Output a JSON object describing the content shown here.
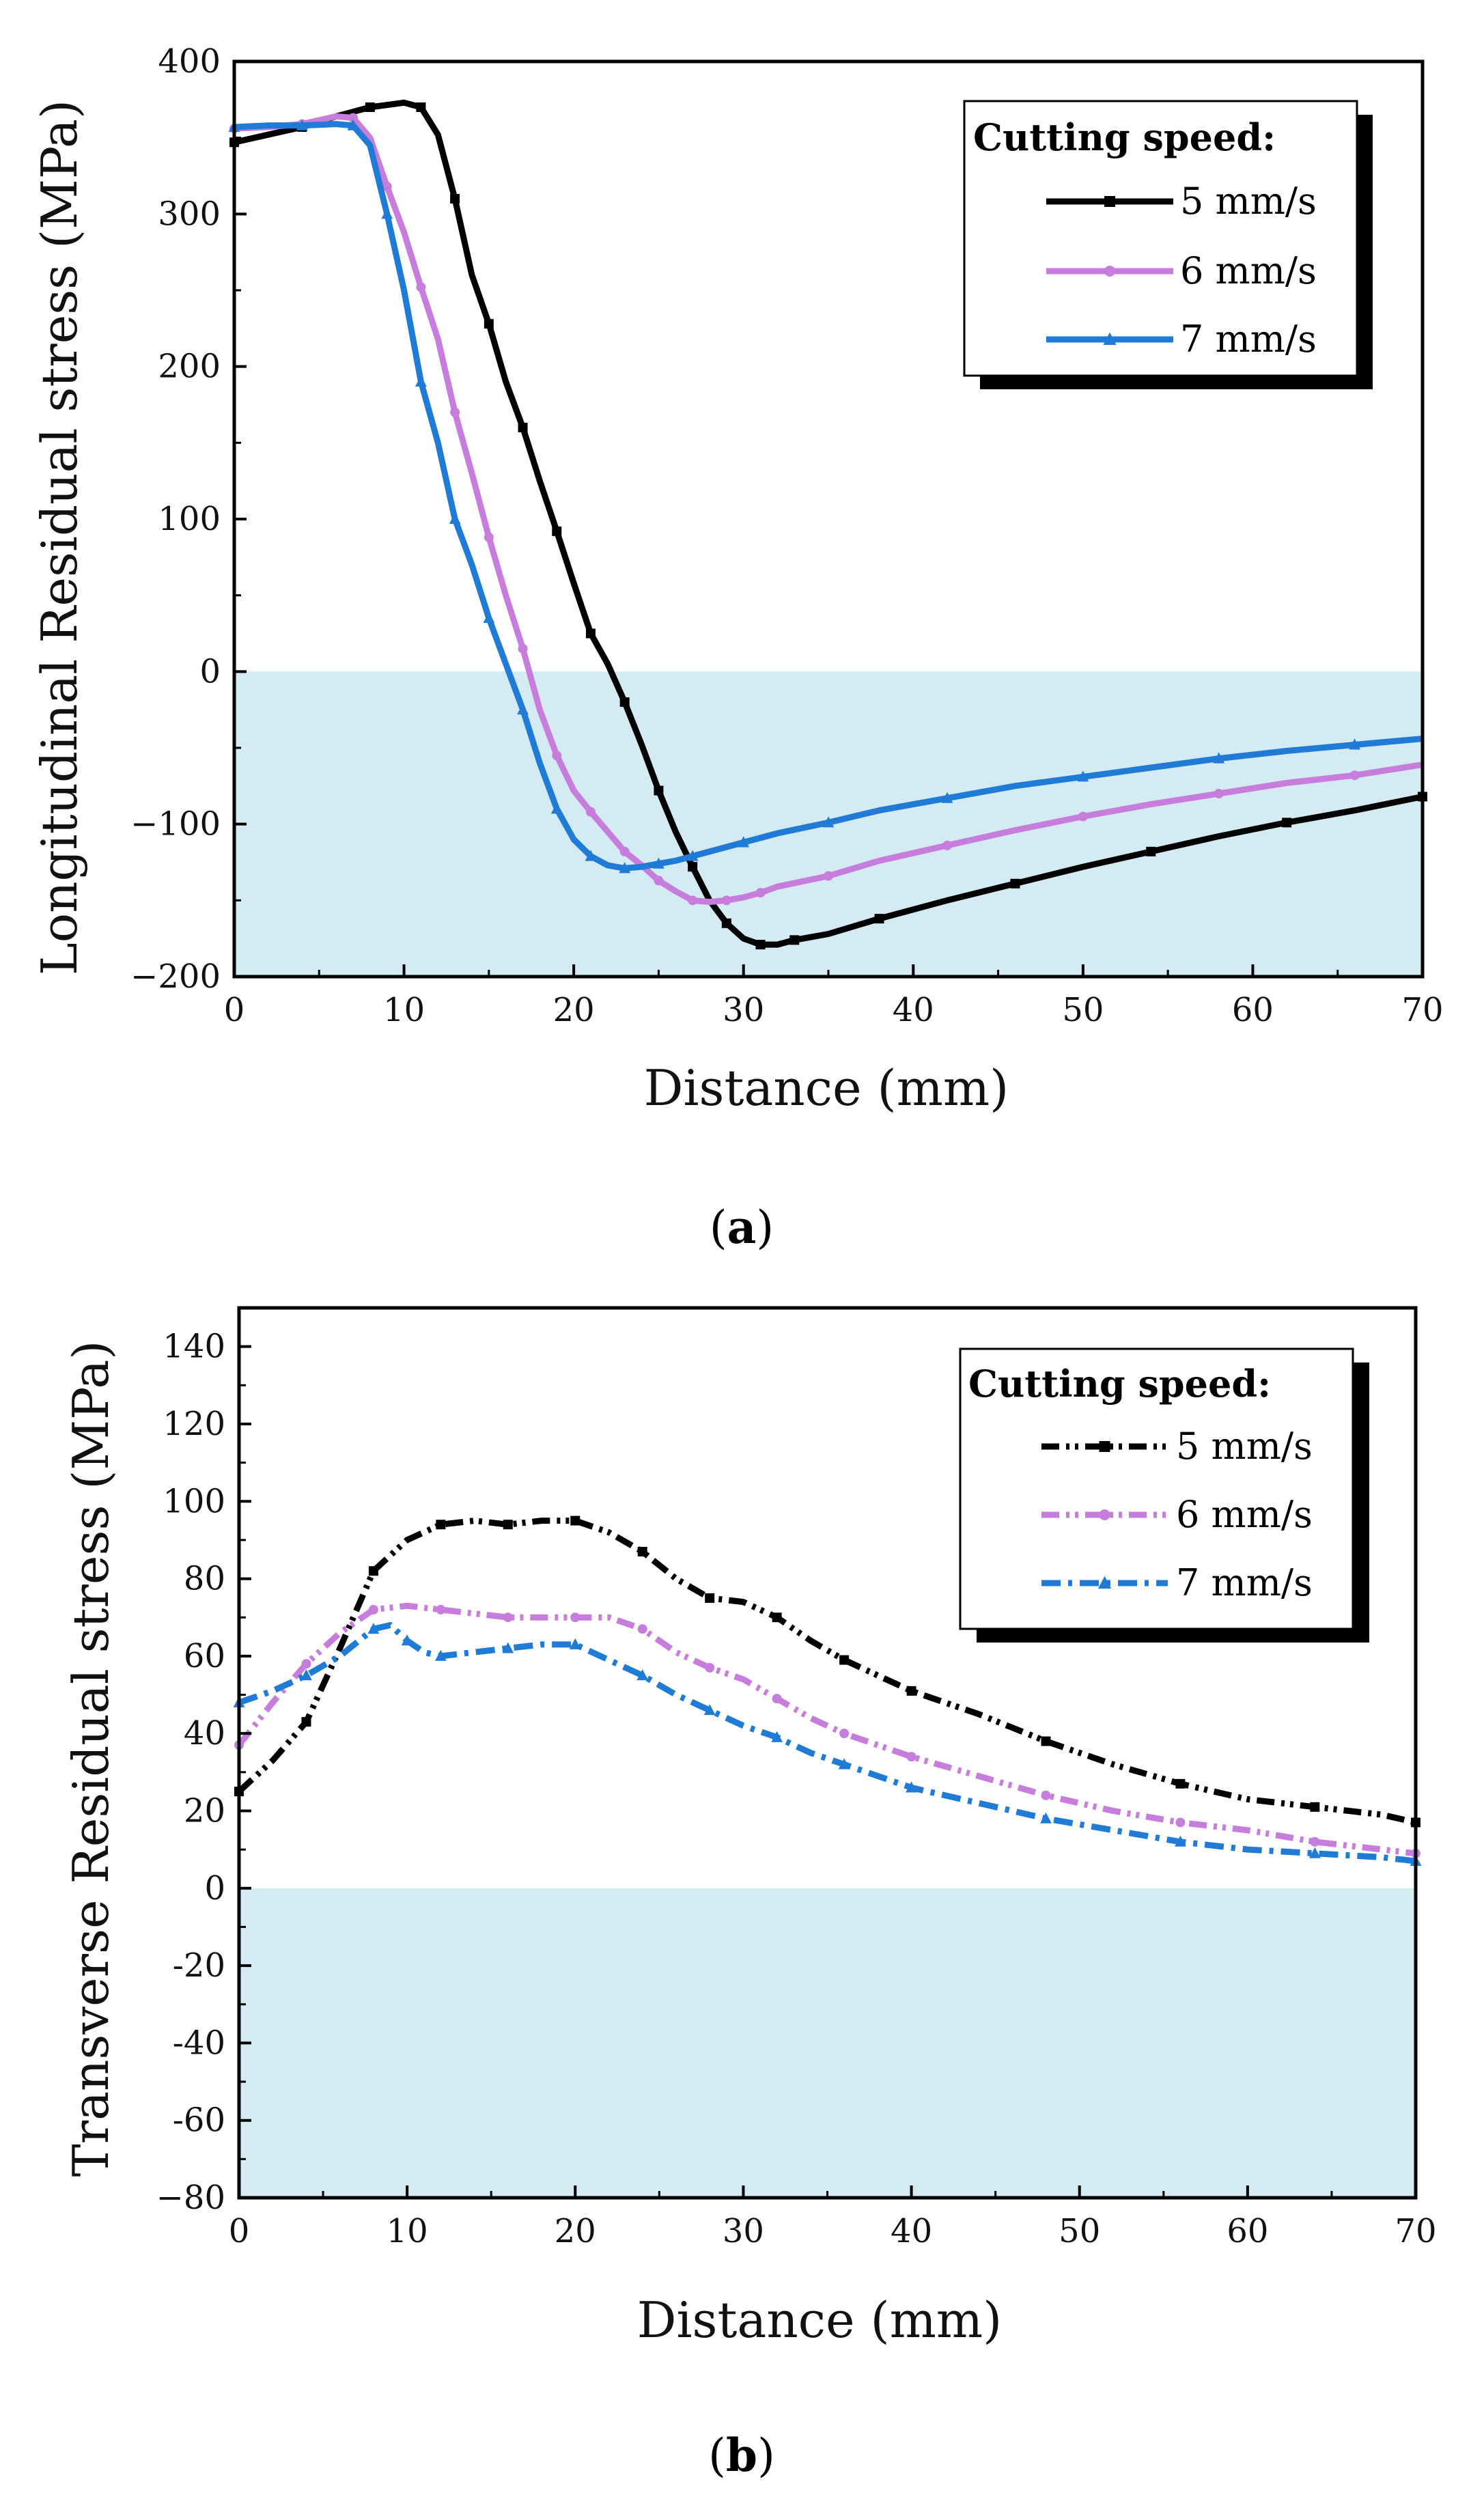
{
  "figure": {
    "panels": [
      {
        "id": "a",
        "caption_open": "(",
        "caption_letter": "a",
        "caption_close": ")"
      },
      {
        "id": "b",
        "caption_open": "(",
        "caption_letter": "b",
        "caption_close": ")"
      }
    ]
  },
  "colors": {
    "shade": "#d4ebf3",
    "series_5": "#000000",
    "series_6": "#c77ddc",
    "series_7": "#1f7bd6",
    "axis": "#000000"
  },
  "chart_data": [
    {
      "type": "line",
      "panel": "a",
      "xlabel": "Distance (mm)",
      "ylabel": "Longitudinal Residual stress (MPa)",
      "xlim": [
        0,
        70
      ],
      "ylim": [
        -200,
        400
      ],
      "xticks": [
        0,
        10,
        20,
        30,
        40,
        50,
        60,
        70
      ],
      "yticks": [
        -200,
        -100,
        0,
        100,
        200,
        300,
        400
      ],
      "ytick_labels": [
        "−200",
        "−100",
        "0",
        "100",
        "200",
        "300",
        "400"
      ],
      "shade_range": [
        -200,
        0
      ],
      "legend": {
        "title": "Cutting speed:",
        "position": "top-right"
      },
      "series": [
        {
          "name": "5 mm/s",
          "line_style": "solid",
          "marker": "square",
          "x": [
            0,
            2,
            4,
            6,
            8,
            10,
            11,
            12,
            13,
            14,
            15,
            16,
            17,
            18,
            19,
            20,
            21,
            22,
            23,
            24,
            25,
            26,
            27,
            28,
            29,
            30,
            31,
            32,
            33,
            35,
            38,
            42,
            46,
            50,
            54,
            58,
            62,
            66,
            70
          ],
          "y": [
            347,
            352,
            357,
            364,
            370,
            373,
            370,
            352,
            310,
            260,
            228,
            190,
            160,
            125,
            92,
            58,
            25,
            5,
            -20,
            -48,
            -78,
            -105,
            -128,
            -150,
            -165,
            -175,
            -179,
            -179,
            -176,
            -172,
            -162,
            -150,
            -139,
            -128,
            -118,
            -108,
            -99,
            -91,
            -82
          ]
        },
        {
          "name": "6 mm/s",
          "line_style": "solid",
          "marker": "circle",
          "x": [
            0,
            2,
            4,
            6,
            7,
            8,
            9,
            10,
            11,
            12,
            13,
            14,
            15,
            16,
            17,
            18,
            19,
            20,
            21,
            22,
            23,
            24,
            25,
            26,
            27,
            28,
            29,
            30,
            31,
            32,
            35,
            38,
            42,
            46,
            50,
            54,
            58,
            62,
            66,
            70
          ],
          "y": [
            356,
            357,
            359,
            364,
            363,
            350,
            318,
            288,
            252,
            218,
            170,
            130,
            88,
            50,
            15,
            -25,
            -55,
            -78,
            -92,
            -105,
            -118,
            -127,
            -137,
            -144,
            -150,
            -151,
            -150,
            -148,
            -145,
            -141,
            -134,
            -124,
            -114,
            -104,
            -95,
            -87,
            -80,
            -73,
            -68,
            -61
          ]
        },
        {
          "name": "7 mm/s",
          "line_style": "solid",
          "marker": "triangle",
          "x": [
            0,
            2,
            4,
            6,
            7,
            8,
            9,
            10,
            11,
            12,
            13,
            14,
            15,
            16,
            17,
            18,
            19,
            20,
            21,
            22,
            23,
            24,
            25,
            26,
            27,
            28,
            30,
            32,
            35,
            38,
            42,
            46,
            50,
            54,
            58,
            62,
            66,
            70
          ],
          "y": [
            357,
            358,
            358,
            359,
            358,
            345,
            300,
            250,
            190,
            150,
            100,
            70,
            35,
            5,
            -25,
            -60,
            -90,
            -110,
            -121,
            -127,
            -129,
            -128,
            -126,
            -124,
            -121,
            -118,
            -112,
            -106,
            -99,
            -91,
            -83,
            -75,
            -69,
            -63,
            -57,
            -52,
            -48,
            -44
          ]
        }
      ]
    },
    {
      "type": "line",
      "panel": "b",
      "xlabel": "Distance (mm)",
      "ylabel": "Transverse Residual stress (MPa)",
      "xlim": [
        0,
        70
      ],
      "ylim": [
        -80,
        150
      ],
      "xticks": [
        0,
        10,
        20,
        30,
        40,
        50,
        60,
        70
      ],
      "yticks": [
        -80,
        -60,
        -40,
        -20,
        0,
        20,
        40,
        60,
        80,
        100,
        120,
        140
      ],
      "ytick_labels": [
        "−80",
        "-60",
        "-40",
        "-20",
        "0",
        "20",
        "40",
        "60",
        "80",
        "100",
        "120",
        "140"
      ],
      "shade_range": [
        -80,
        0
      ],
      "legend": {
        "title": "Cutting speed:",
        "position": "top-right"
      },
      "series": [
        {
          "name": "5 mm/s",
          "line_style": "dash-dot-dot",
          "marker": "square",
          "x": [
            0,
            2,
            4,
            6,
            8,
            10,
            12,
            14,
            16,
            18,
            20,
            22,
            24,
            26,
            28,
            30,
            32,
            34,
            36,
            38,
            40,
            44,
            48,
            52,
            56,
            60,
            64,
            68,
            70
          ],
          "y": [
            25,
            33,
            43,
            62,
            82,
            90,
            94,
            95,
            94,
            95,
            95,
            92,
            87,
            80,
            75,
            74,
            70,
            64,
            59,
            55,
            51,
            45,
            38,
            32,
            27,
            23,
            21,
            19,
            17
          ]
        },
        {
          "name": "6 mm/s",
          "line_style": "dash-dot-dot",
          "marker": "circle",
          "x": [
            0,
            2,
            4,
            6,
            8,
            10,
            12,
            14,
            16,
            18,
            20,
            22,
            24,
            26,
            28,
            30,
            32,
            34,
            36,
            38,
            40,
            44,
            48,
            52,
            56,
            60,
            64,
            68,
            70
          ],
          "y": [
            37,
            48,
            58,
            66,
            72,
            73,
            72,
            71,
            70,
            70,
            70,
            70,
            67,
            61,
            57,
            54,
            49,
            44,
            40,
            37,
            34,
            29,
            24,
            20,
            17,
            15,
            12,
            10,
            9
          ]
        },
        {
          "name": "7 mm/s",
          "line_style": "dash-dot",
          "marker": "triangle",
          "x": [
            0,
            2,
            4,
            6,
            8,
            9,
            10,
            11,
            12,
            14,
            16,
            18,
            20,
            22,
            24,
            26,
            28,
            30,
            32,
            34,
            36,
            38,
            40,
            44,
            48,
            52,
            56,
            60,
            64,
            68,
            70
          ],
          "y": [
            48,
            51,
            55,
            60,
            67,
            68,
            64,
            61,
            60,
            61,
            62,
            63,
            63,
            59,
            55,
            50,
            46,
            42,
            39,
            35,
            32,
            29,
            26,
            22,
            18,
            15,
            12,
            10,
            9,
            8,
            7
          ]
        }
      ]
    }
  ]
}
